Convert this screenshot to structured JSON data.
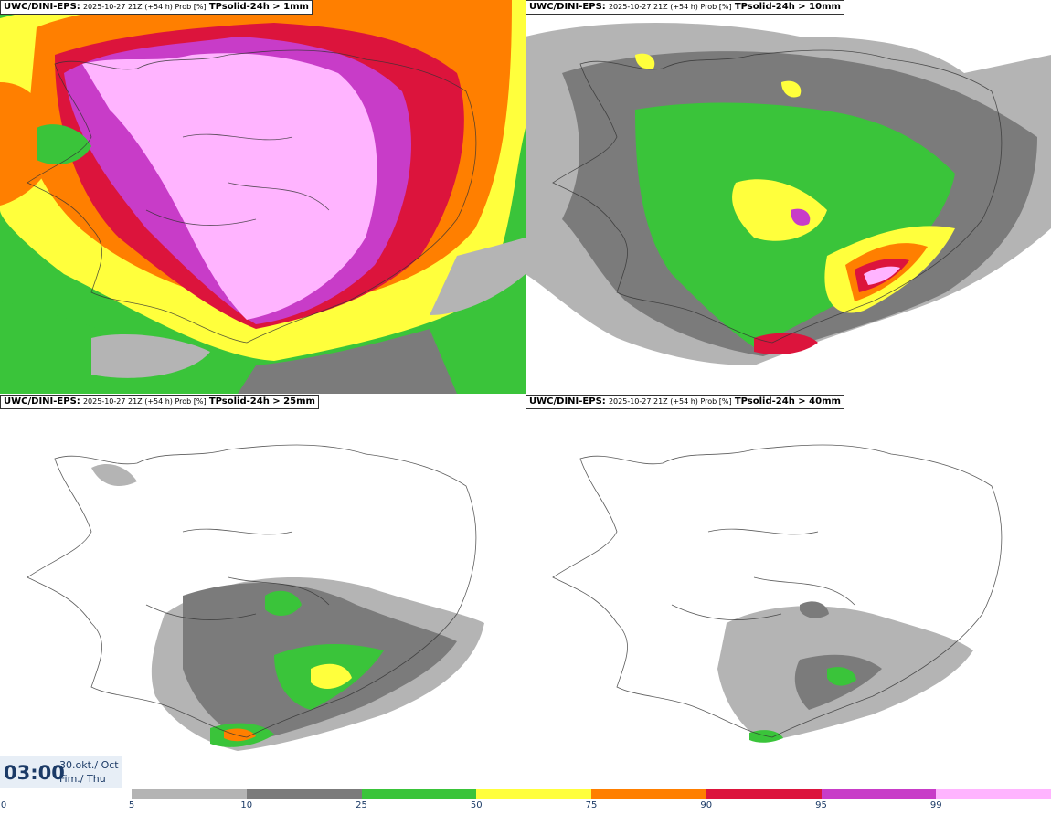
{
  "panels": [
    {
      "model": "UWC/DINI-EPS:",
      "run": "2025-10-27 21Z (+54 h) Prob [%]",
      "param": "TPsolid-24h > 1mm"
    },
    {
      "model": "UWC/DINI-EPS:",
      "run": "2025-10-27 21Z (+54 h) Prob [%]",
      "param": "TPsolid-24h > 10mm"
    },
    {
      "model": "UWC/DINI-EPS:",
      "run": "2025-10-27 21Z (+54 h) Prob [%]",
      "param": "TPsolid-24h > 25mm"
    },
    {
      "model": "UWC/DINI-EPS:",
      "run": "2025-10-27 21Z (+54 h) Prob [%]",
      "param": "TPsolid-24h > 40mm"
    }
  ],
  "valid_time": {
    "time": "03:00",
    "date_line1": "30.okt./ Oct",
    "date_line2": "Fim./ Thu"
  },
  "legend": {
    "ticks": [
      "0",
      "5",
      "10",
      "25",
      "50",
      "75",
      "90",
      "95",
      "99"
    ],
    "colors": [
      "#b4b4b4",
      "#7b7b7b",
      "#3ac43a",
      "#ffff3c",
      "#ff7f00",
      "#dc143c",
      "#c83cc8",
      "#ffb4ff"
    ]
  }
}
